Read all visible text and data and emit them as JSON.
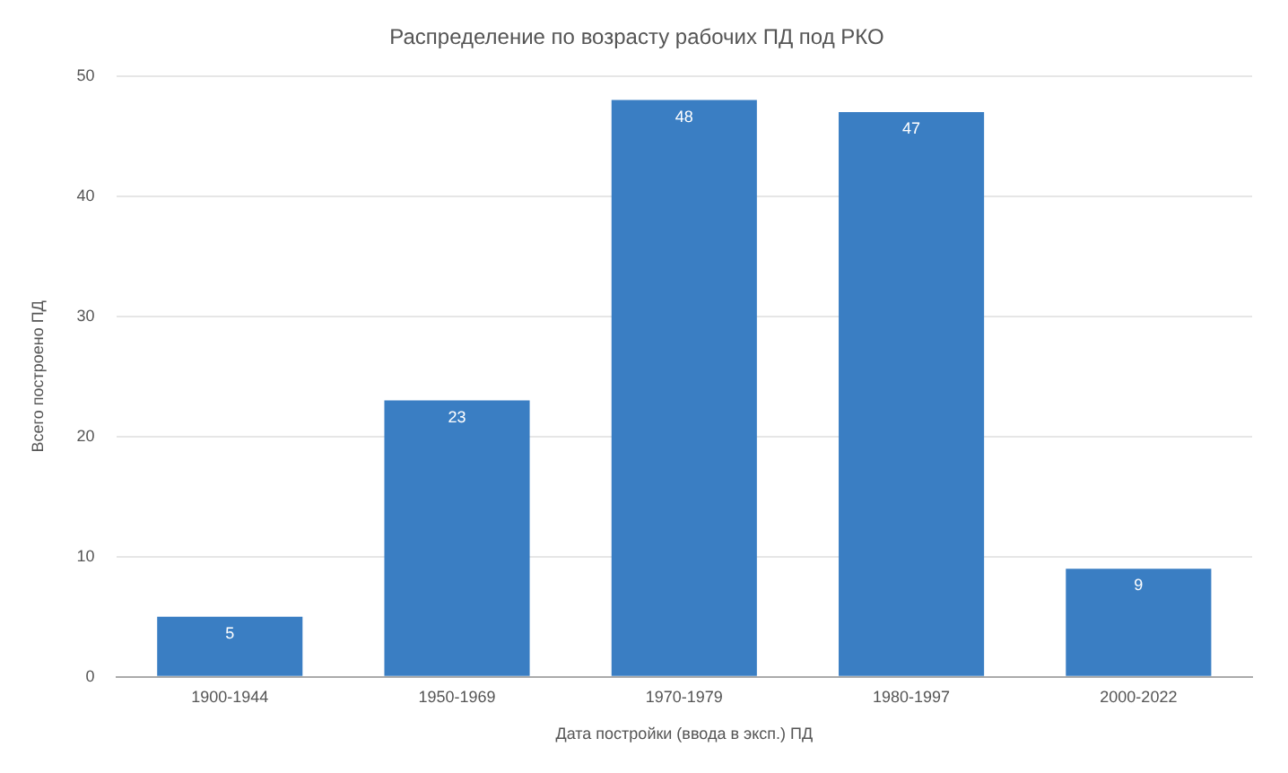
{
  "chart_data": {
    "type": "bar",
    "title": "Распределение по возрасту рабочих ПД под РКО",
    "xlabel": "Дата постройки (ввода в эксп.) ПД",
    "ylabel": "Всего построено ПД",
    "categories": [
      "1900-1944",
      "1950-1969",
      "1970-1979",
      "1980-1997",
      "2000-2022"
    ],
    "series": [
      {
        "color": "#3a7ec3",
        "values": [
          5,
          23,
          48,
          47,
          9
        ]
      }
    ],
    "ylim": [
      0,
      50
    ],
    "yticks": [
      0,
      10,
      20,
      30,
      40,
      50
    ],
    "grid": "y",
    "legend": false,
    "data_labels": true
  }
}
